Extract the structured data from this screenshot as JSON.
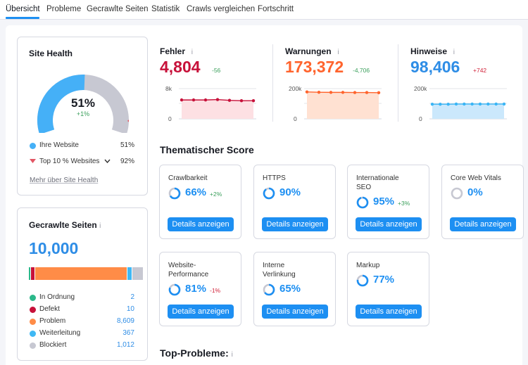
{
  "tabs": [
    "Übersicht",
    "Probleme",
    "Gecrawlte Seiten",
    "Statistik",
    "Crawls vergleichen",
    "Fortschritt"
  ],
  "site_health": {
    "title": "Site Health",
    "percent": "51%",
    "change": "+1%",
    "value_fraction": 0.51,
    "ihre_label": "Ihre Website",
    "ihre_value": "51%",
    "top_label": "Top 10 % Websites",
    "top_value": "92%",
    "link": "Mehr über Site Health",
    "color_own": "#45b0f7",
    "color_rest": "#c7c8d2",
    "color_marker": "#e25563"
  },
  "crawled": {
    "title": "Gecrawlte Seiten",
    "total": "10,000",
    "items": [
      {
        "label": "In Ordnung",
        "value": "2",
        "color": "#2bb88a"
      },
      {
        "label": "Defekt",
        "value": "10",
        "color": "#c7113a"
      },
      {
        "label": "Problem",
        "value": "8,609",
        "color": "#ff8c47"
      },
      {
        "label": "Weiterleitung",
        "value": "367",
        "color": "#3fb8f4"
      },
      {
        "label": "Blockiert",
        "value": "1,012",
        "color": "#c7c8d2"
      }
    ]
  },
  "metrics": [
    {
      "title": "Fehler",
      "value": "4,804",
      "change": "-56",
      "color": "#c7113a",
      "ytop": "0k",
      "ytop_label": "8k",
      "ybottom": "0",
      "series": [
        5,
        5,
        5,
        5.1,
        4.9,
        4.8,
        4.8
      ],
      "ymax": 8,
      "fill": "#fde0e3",
      "line": "#c7113a"
    },
    {
      "title": "Warnungen",
      "value": "173,372",
      "change": "-4,706",
      "color": "#ff642d",
      "ytop_label": "200k",
      "ybottom": "0",
      "series": [
        178,
        176,
        175,
        175,
        174,
        174,
        173
      ],
      "ymax": 200,
      "fill": "#ffe1d2",
      "line": "#ff642d"
    },
    {
      "title": "Hinweise",
      "value": "98,406",
      "change": "+742",
      "color": "#2e8de6",
      "ytop_label": "200k",
      "ybottom": "0",
      "series": [
        97,
        97,
        97,
        98,
        98,
        98,
        98,
        98,
        98,
        98
      ],
      "ymax": 200,
      "fill": "#cbe8fc",
      "line": "#3ab5f5"
    }
  ],
  "thematic": {
    "title": "Thematischer Score",
    "button_label": "Details anzeigen",
    "cards": [
      {
        "name": "Crawlbarkeit",
        "pct": "66%",
        "change": "+2%",
        "dir": "pos",
        "fill": 0.66
      },
      {
        "name": "HTTPS",
        "pct": "90%",
        "change": "",
        "dir": "",
        "fill": 0.9
      },
      {
        "name": "Internationale SEO",
        "pct": "95%",
        "change": "+3%",
        "dir": "pos",
        "fill": 0.95
      },
      {
        "name": "Core Web Vitals",
        "pct": "0%",
        "change": "",
        "dir": "",
        "fill": 0
      },
      {
        "name": "Website-Performance",
        "pct": "81%",
        "change": "-1%",
        "dir": "neg",
        "fill": 0.81
      },
      {
        "name": "Interne Verlinkung",
        "pct": "65%",
        "change": "",
        "dir": "",
        "fill": 0.65
      },
      {
        "name": "Markup",
        "pct": "77%",
        "change": "",
        "dir": "",
        "fill": 0.77
      }
    ]
  },
  "top_problems": {
    "title": "Top-Probleme:"
  },
  "icons": {
    "info": "i"
  }
}
